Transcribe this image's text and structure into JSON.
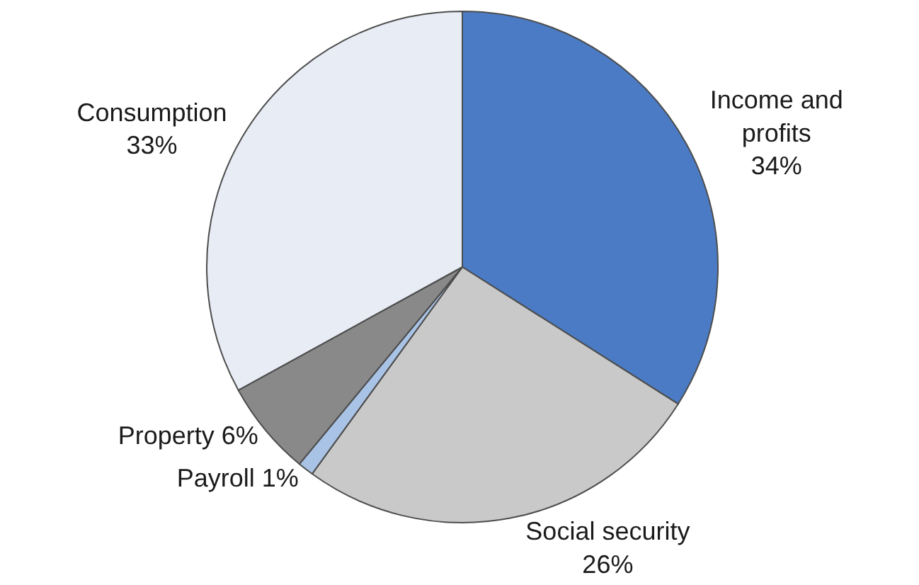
{
  "chart_data": {
    "type": "pie",
    "categories": [
      "Income and profits",
      "Social security",
      "Payroll",
      "Property",
      "Consumption"
    ],
    "values": [
      34,
      26,
      1,
      6,
      33
    ],
    "value_labels": [
      "34%",
      "26%",
      "1%",
      "6%",
      "33%"
    ],
    "colors": [
      "#4a7bc4",
      "#c9c9c9",
      "#a9c3e6",
      "#898989",
      "#e7ecf5"
    ],
    "legend": false
  }
}
